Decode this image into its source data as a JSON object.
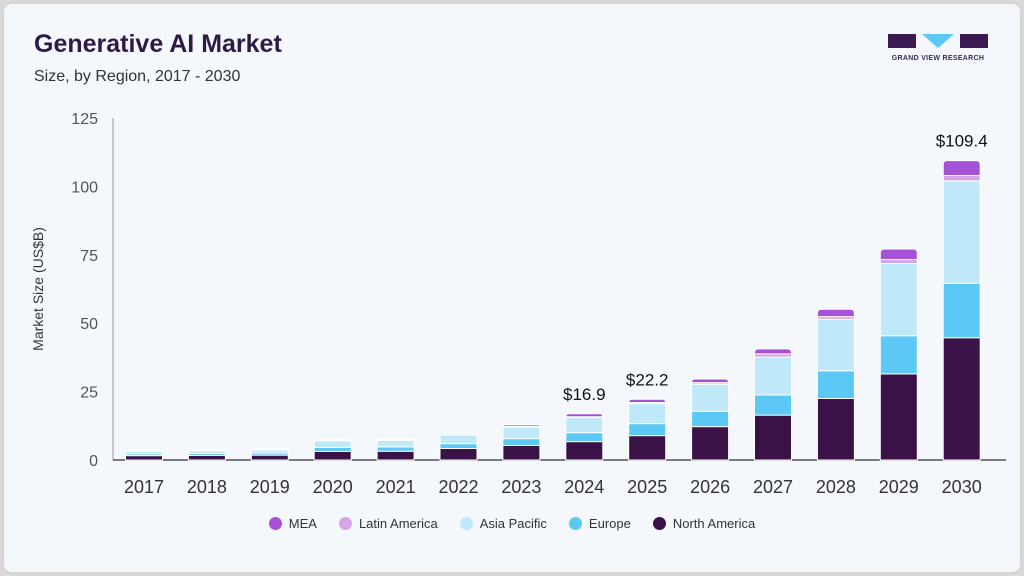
{
  "header": {
    "title": "Generative AI Market",
    "subtitle": "Size, by Region, 2017 - 2030"
  },
  "logo": {
    "text": "GRAND VIEW RESEARCH"
  },
  "chart_data": {
    "type": "bar",
    "stacked": true,
    "ylabel": "Market Size (US$B)",
    "ylim": [
      0,
      125
    ],
    "yticks": [
      0,
      25,
      50,
      75,
      100,
      125
    ],
    "grid": false,
    "legend_position": "bottom",
    "categories": [
      "2017",
      "2018",
      "2019",
      "2020",
      "2021",
      "2022",
      "2023",
      "2024",
      "2025",
      "2026",
      "2027",
      "2028",
      "2029",
      "2030"
    ],
    "series": [
      {
        "name": "North America",
        "color": "#3a1248",
        "values": [
          1.6,
          1.7,
          1.8,
          3.1,
          3.2,
          4.2,
          5.3,
          6.7,
          8.9,
          12.2,
          16.4,
          22.5,
          31.5,
          44.7
        ]
      },
      {
        "name": "Europe",
        "color": "#5bc8f5",
        "values": [
          0.7,
          0.7,
          0.8,
          1.5,
          1.6,
          1.8,
          2.5,
          3.3,
          4.4,
          5.6,
          7.4,
          10.1,
          13.9,
          19.9
        ]
      },
      {
        "name": "Asia Pacific",
        "color": "#bfe8f9",
        "values": [
          0.9,
          1.0,
          1.1,
          2.4,
          2.4,
          3.2,
          4.2,
          5.5,
          7.3,
          9.9,
          13.8,
          18.8,
          26.4,
          37.4
        ]
      },
      {
        "name": "Latin America",
        "color": "#d4a6e8",
        "values": [
          0.1,
          0.1,
          0.1,
          0.2,
          0.2,
          0.2,
          0.3,
          0.3,
          0.4,
          0.6,
          1.2,
          1.0,
          1.5,
          2.0
        ]
      },
      {
        "name": "MEA",
        "color": "#a552d6",
        "values": [
          0.2,
          0.2,
          0.2,
          0.3,
          0.3,
          0.4,
          0.6,
          1.1,
          1.2,
          1.3,
          1.8,
          2.7,
          3.8,
          5.4
        ]
      }
    ],
    "data_labels": [
      {
        "category": "2024",
        "text": "$16.9"
      },
      {
        "category": "2025",
        "text": "$22.2"
      },
      {
        "category": "2030",
        "text": "$109.4"
      }
    ]
  },
  "legend_order": [
    "MEA",
    "Latin America",
    "Asia Pacific",
    "Europe",
    "North America"
  ]
}
